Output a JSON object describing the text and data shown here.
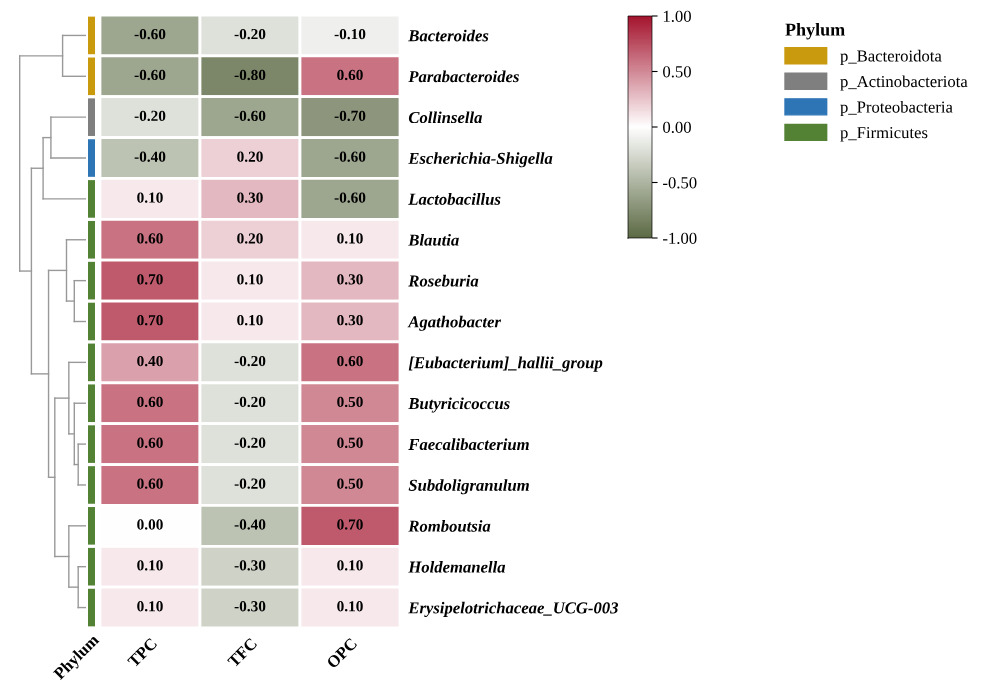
{
  "chart_data": {
    "type": "heatmap",
    "categories": [
      "TPC",
      "TFC",
      "OPC"
    ],
    "y_categories": [
      "Bacteroides",
      "Parabacteroides",
      "Collinsella",
      "Escherichia-Shigella",
      "Lactobacillus",
      "Blautia",
      "Roseburia",
      "Agathobacter",
      "[Eubacterium]_hallii_group",
      "Butyricicoccus",
      "Faecalibacterium",
      "Subdoligranulum",
      "Romboutsia",
      "Holdemanella",
      "Erysipelotrichaceae_UCG-003"
    ],
    "cells": [
      [
        -0.6,
        -0.2,
        -0.1
      ],
      [
        -0.6,
        -0.8,
        0.6
      ],
      [
        -0.2,
        -0.6,
        -0.7
      ],
      [
        -0.4,
        0.2,
        -0.6
      ],
      [
        0.1,
        0.3,
        -0.6
      ],
      [
        0.6,
        0.2,
        0.1
      ],
      [
        0.7,
        0.1,
        0.3
      ],
      [
        0.7,
        0.1,
        0.3
      ],
      [
        0.4,
        -0.2,
        0.6
      ],
      [
        0.6,
        -0.2,
        0.5
      ],
      [
        0.6,
        -0.2,
        0.5
      ],
      [
        0.6,
        -0.2,
        0.5
      ],
      [
        0.0,
        -0.4,
        0.7
      ],
      [
        0.1,
        -0.3,
        0.1
      ],
      [
        0.1,
        -0.3,
        0.1
      ]
    ],
    "cell_labels": [
      [
        "-0.60",
        "-0.20",
        "-0.10"
      ],
      [
        "-0.60",
        "-0.80",
        "0.60"
      ],
      [
        "-0.20",
        "-0.60",
        "-0.70"
      ],
      [
        "-0.40",
        "0.20",
        "-0.60"
      ],
      [
        "0.10",
        "0.30",
        "-0.60"
      ],
      [
        "0.60",
        "0.20",
        "0.10"
      ],
      [
        "0.70",
        "0.10",
        "0.30"
      ],
      [
        "0.70",
        "0.10",
        "0.30"
      ],
      [
        "0.40",
        "-0.20",
        "0.60"
      ],
      [
        "0.60",
        "-0.20",
        "0.50"
      ],
      [
        "0.60",
        "-0.20",
        "0.50"
      ],
      [
        "0.60",
        "-0.20",
        "0.50"
      ],
      [
        "0.00",
        "-0.40",
        "0.70"
      ],
      [
        "0.10",
        "-0.30",
        "0.10"
      ],
      [
        "0.10",
        "-0.30",
        "0.10"
      ]
    ],
    "clim": [
      -1,
      1
    ],
    "cticks": [
      {
        "value": 1,
        "label": "1.00"
      },
      {
        "value": 0.5,
        "label": "0.50"
      },
      {
        "value": 0,
        "label": "0.00"
      },
      {
        "value": -0.5,
        "label": "-0.50"
      },
      {
        "value": -1,
        "label": "-1.00"
      }
    ],
    "legend_title": "Phylum",
    "annotations": [
      "p_Bacteroidota",
      "p_Actinobacteriota",
      "p_Proteobacteria",
      "p_Firmicutes"
    ],
    "colors": [
      "#c99a0e",
      "#c99a0e",
      "#7f7f7f",
      "#2e75b6",
      "#548235",
      "#548235",
      "#548235",
      "#548235",
      "#548235",
      "#548235",
      "#548235",
      "#548235",
      "#548235",
      "#548235",
      "#548235"
    ]
  }
}
